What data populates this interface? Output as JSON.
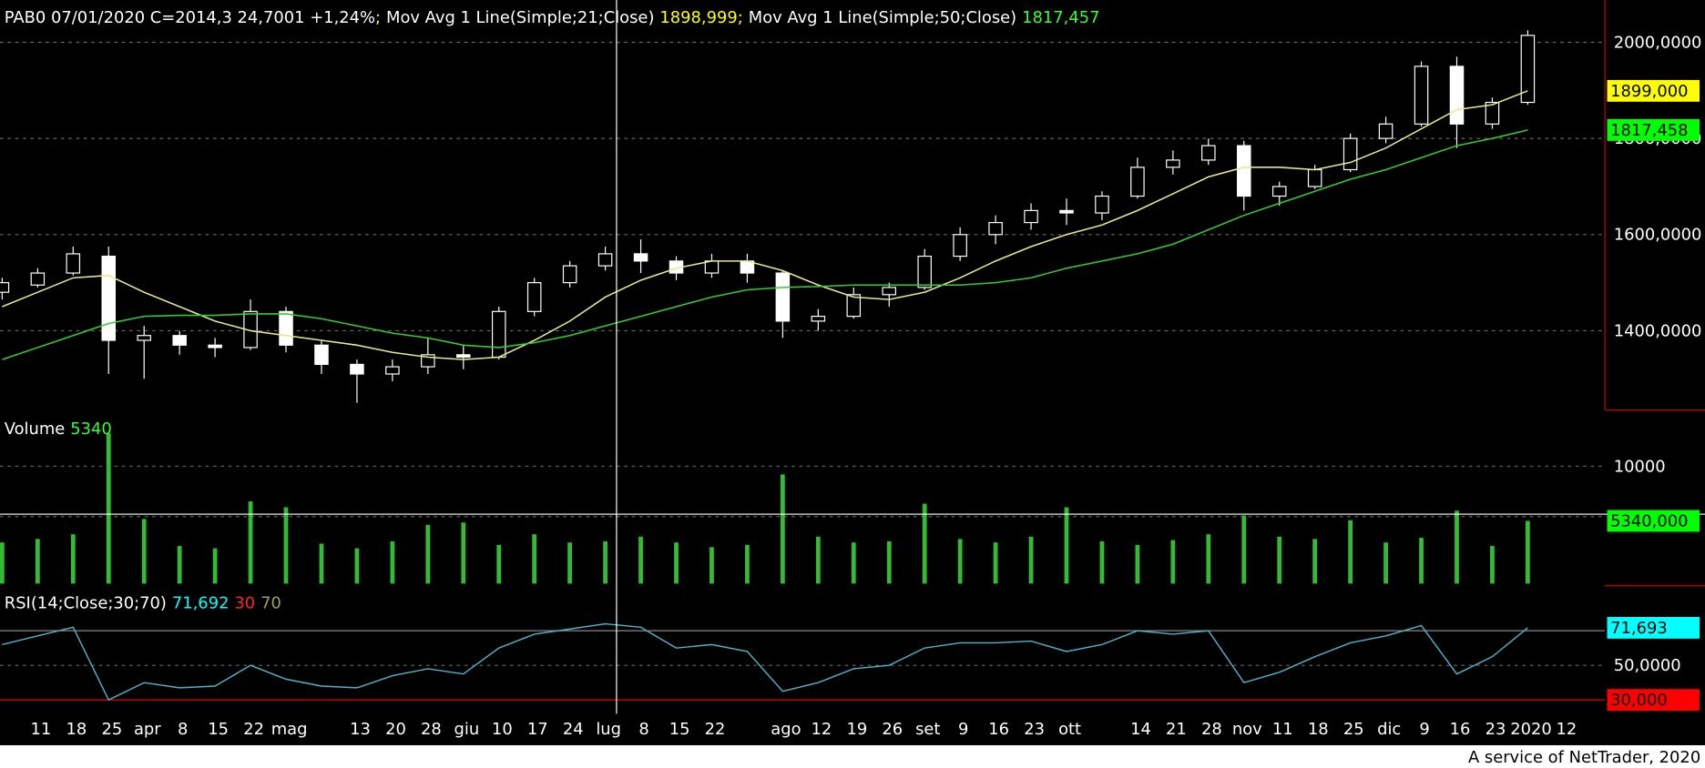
{
  "footer": "A service of NetTrader, 2020",
  "chart_data": [
    {
      "type": "candlestick",
      "title": "PAB0 07/01/2020 C=2014,3 24,7001 +1,24%",
      "separator": ";",
      "categories": [
        null,
        "11",
        "18",
        "25",
        "apr",
        "8",
        "15",
        "22",
        "mag",
        null,
        "13",
        "20",
        "28",
        "giu",
        "10",
        "17",
        "24",
        "lug",
        "8",
        "15",
        "22",
        null,
        "ago",
        "12",
        "19",
        "26",
        "set",
        "9",
        "16",
        "23",
        "ott",
        null,
        "14",
        "21",
        "28",
        "nov",
        "11",
        "18",
        "25",
        "dic",
        "9",
        "16",
        "23",
        "2020",
        "12"
      ],
      "open": [
        1480,
        1495,
        1520,
        1555,
        1380,
        1390,
        1370,
        1365,
        1440,
        1370,
        1330,
        1310,
        1325,
        1350,
        1345,
        1440,
        1500,
        1535,
        1560,
        1545,
        1520,
        1545,
        1520,
        1420,
        1430,
        1475,
        1490,
        1555,
        1600,
        1625,
        1650,
        1645,
        1680,
        1740,
        1755,
        1785,
        1680,
        1700,
        1735,
        1800,
        1830,
        1950,
        1830,
        1875,
        null
      ],
      "high": [
        1510,
        1530,
        1575,
        1575,
        1410,
        1400,
        1385,
        1465,
        1450,
        1380,
        1340,
        1340,
        1385,
        1370,
        1450,
        1510,
        1545,
        1575,
        1590,
        1555,
        1560,
        1560,
        1525,
        1445,
        1490,
        1500,
        1570,
        1615,
        1640,
        1665,
        1675,
        1690,
        1760,
        1775,
        1800,
        1795,
        1710,
        1745,
        1810,
        1845,
        1960,
        1970,
        1885,
        2025,
        null
      ],
      "low": [
        1465,
        1490,
        1515,
        1310,
        1300,
        1350,
        1345,
        1360,
        1355,
        1310,
        1250,
        1295,
        1310,
        1320,
        1340,
        1430,
        1490,
        1525,
        1520,
        1505,
        1510,
        1500,
        1385,
        1400,
        1425,
        1450,
        1485,
        1545,
        1580,
        1610,
        1620,
        1630,
        1675,
        1725,
        1745,
        1650,
        1660,
        1695,
        1730,
        1790,
        1825,
        1780,
        1820,
        1870,
        null
      ],
      "close": [
        1500,
        1520,
        1560,
        1380,
        1390,
        1370,
        1365,
        1440,
        1370,
        1330,
        1310,
        1325,
        1350,
        1345,
        1440,
        1500,
        1535,
        1560,
        1545,
        1520,
        1545,
        1520,
        1420,
        1430,
        1475,
        1490,
        1555,
        1600,
        1625,
        1650,
        1645,
        1680,
        1740,
        1755,
        1785,
        1680,
        1700,
        1735,
        1800,
        1830,
        1950,
        1830,
        1875,
        2014.3,
        null
      ],
      "up_color": "#000000",
      "down_color": "#ffffff",
      "wick_color": "#ffffff",
      "series": [
        {
          "name": "Mov Avg 1 Line(Simple;21;Close)",
          "color": "#e8e890",
          "label_color": "#ffff00",
          "values": [
            1450,
            1480,
            1510,
            1515,
            1480,
            1450,
            1420,
            1400,
            1390,
            1380,
            1370,
            1355,
            1345,
            1340,
            1345,
            1380,
            1420,
            1470,
            1505,
            1530,
            1545,
            1545,
            1525,
            1495,
            1470,
            1465,
            1480,
            1510,
            1545,
            1575,
            1600,
            1620,
            1650,
            1685,
            1720,
            1740,
            1740,
            1735,
            1750,
            1780,
            1820,
            1860,
            1870,
            1898.999,
            null
          ],
          "value_labels": [
            null,
            null,
            null,
            null,
            null,
            null,
            null,
            null,
            null,
            null,
            null,
            null,
            null,
            null,
            null,
            null,
            null,
            null,
            null,
            null,
            null,
            null,
            null,
            null,
            null,
            null,
            null,
            null,
            null,
            null,
            null,
            null,
            null,
            null,
            null,
            null,
            null,
            null,
            null,
            null,
            null,
            null,
            null,
            "1898,999",
            null
          ]
        },
        {
          "name": "Mov Avg 1 Line(Simple;50;Close)",
          "color": "#33cc33",
          "label_color": "#33ff33",
          "values": [
            1340,
            1365,
            1390,
            1415,
            1430,
            1432,
            1432,
            1435,
            1435,
            1425,
            1410,
            1395,
            1385,
            1370,
            1365,
            1375,
            1390,
            1410,
            1430,
            1450,
            1470,
            1485,
            1490,
            1492,
            1495,
            1495,
            1495,
            1495,
            1500,
            1510,
            1530,
            1545,
            1560,
            1580,
            1610,
            1640,
            1665,
            1690,
            1715,
            1735,
            1760,
            1785,
            1800,
            1817.457,
            null
          ],
          "value_labels": [
            null,
            null,
            null,
            null,
            null,
            null,
            null,
            null,
            null,
            null,
            null,
            null,
            null,
            null,
            null,
            null,
            null,
            null,
            null,
            null,
            null,
            null,
            null,
            null,
            null,
            null,
            null,
            null,
            null,
            null,
            null,
            null,
            null,
            null,
            null,
            null,
            null,
            null,
            null,
            null,
            null,
            null,
            null,
            "1817,457",
            null
          ]
        }
      ],
      "ylim": [
        1235,
        2088
      ],
      "yticks": [
        {
          "value": 2000,
          "label": "2000,0000"
        },
        {
          "value": 1800,
          "label": "1800,0000"
        },
        {
          "value": 1600,
          "label": "1600,0000"
        },
        {
          "value": 1400,
          "label": "1400,0000"
        }
      ],
      "grid": true,
      "markers": [
        {
          "value": 1899,
          "label": "1899,000",
          "color": "#ffff00"
        },
        {
          "value": 1817.458,
          "label": "1817,458",
          "color": "#00ff00"
        }
      ]
    },
    {
      "type": "bar",
      "title": "Volume",
      "color": "#33bb33",
      "label_color": "#33ff33",
      "values": [
        3500,
        3800,
        4200,
        12800,
        5500,
        3200,
        3000,
        7000,
        6500,
        3400,
        3000,
        3600,
        5000,
        5200,
        3300,
        4200,
        3500,
        3600,
        4000,
        3500,
        3100,
        3300,
        9300,
        4000,
        3500,
        3600,
        6800,
        3800,
        3500,
        4000,
        6500,
        3600,
        3300,
        3700,
        4200,
        5800,
        4000,
        3800,
        5400,
        3500,
        3900,
        6200,
        3200,
        5340,
        null
      ],
      "ylim": [
        0,
        14600
      ],
      "yticks": [
        10000
      ],
      "grid": true,
      "markers": [
        {
          "value": 5340,
          "label": "5340,000",
          "color": "#00ff00"
        }
      ]
    },
    {
      "type": "line",
      "title": "RSI(14;Close;30;70)",
      "color": "#4fb3c9",
      "label_color": "#00ffff",
      "values": [
        62,
        67,
        72,
        30,
        40,
        37,
        38,
        50,
        42,
        38,
        37,
        44,
        48,
        45,
        60,
        68,
        71,
        74,
        72,
        60,
        62,
        58,
        35,
        40,
        48,
        50,
        60,
        63,
        63,
        64,
        58,
        62,
        70,
        68,
        70,
        40,
        46,
        55,
        63,
        67,
        73,
        45,
        55,
        71.692,
        null
      ],
      "value_labels": [
        null,
        null,
        null,
        null,
        null,
        null,
        null,
        null,
        null,
        null,
        null,
        null,
        null,
        null,
        null,
        null,
        null,
        null,
        null,
        null,
        null,
        null,
        null,
        null,
        null,
        null,
        null,
        null,
        null,
        null,
        null,
        null,
        null,
        null,
        null,
        null,
        null,
        null,
        null,
        null,
        null,
        null,
        null,
        "71,692",
        null
      ],
      "thresholds": [
        {
          "value": 30,
          "color": "#ff2020",
          "line_color": "#ff0000"
        },
        {
          "value": 70,
          "color": "#a0a050",
          "line_color": "#888888"
        }
      ],
      "ylim": [
        22,
        96
      ],
      "yticks": [
        {
          "value": 50,
          "label": "50,0000"
        }
      ],
      "grid": true,
      "markers": [
        {
          "value": 71.693,
          "label": "71,693",
          "color": "#00ffff"
        },
        {
          "value": 30,
          "label": "30,000",
          "color": "#ff0000"
        }
      ]
    }
  ]
}
